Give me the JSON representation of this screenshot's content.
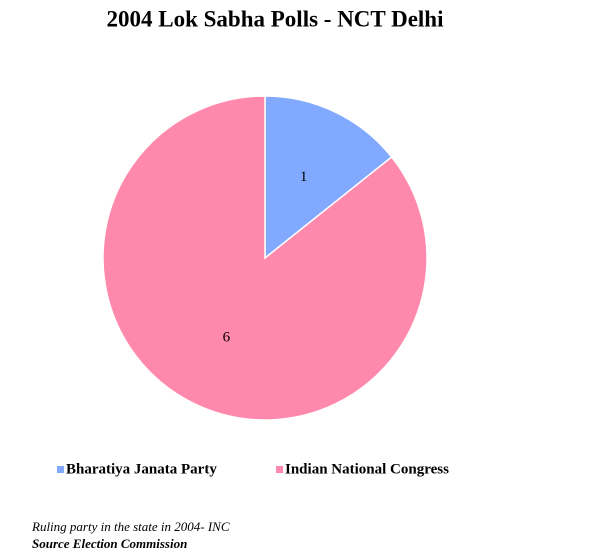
{
  "chart_data": {
    "type": "pie",
    "title": "2004 Lok Sabha Polls - NCT Delhi",
    "categories": [
      "Bharatiya Janata Party",
      "Indian National Congress"
    ],
    "values": [
      1,
      6
    ],
    "colors": [
      "#80a9ff",
      "#ff88ad"
    ],
    "legend": "bottom",
    "note": "Ruling party in the state in 2004- INC",
    "source": "Source Election Commission"
  }
}
